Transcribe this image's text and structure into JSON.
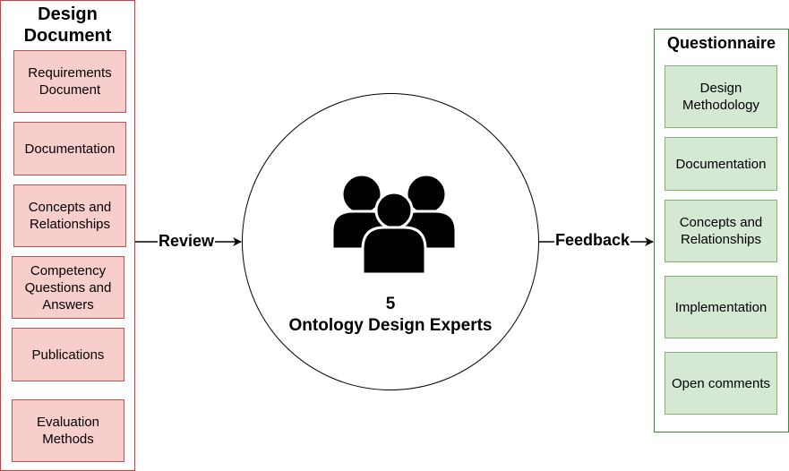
{
  "left_panel": {
    "title_line1": "Design",
    "title_line2": "Document",
    "items": [
      {
        "line1": "Requirements",
        "line2": "Document"
      },
      {
        "line1": "Documentation",
        "line2": ""
      },
      {
        "line1": "Concepts and",
        "line2": "Relationships"
      },
      {
        "line1": "Competency",
        "line2": "Questions and",
        "line3": "Answers"
      },
      {
        "line1": "Publications",
        "line2": ""
      },
      {
        "line1": "Evaluation",
        "line2": "Methods"
      }
    ]
  },
  "right_panel": {
    "title": "Questionnaire",
    "items": [
      {
        "line1": "Design",
        "line2": "Methodology"
      },
      {
        "line1": "Documentation",
        "line2": ""
      },
      {
        "line1": "Concepts and",
        "line2": "Relationships"
      },
      {
        "line1": "Implementation",
        "line2": ""
      },
      {
        "line1": "Open comments",
        "line2": ""
      }
    ]
  },
  "arrows": {
    "review_label": "Review",
    "feedback_label": "Feedback"
  },
  "center": {
    "count": "5",
    "label": "Ontology Design Experts",
    "icon": "group-of-people-icon"
  },
  "colors": {
    "left_border": "#d83a3a",
    "left_fill": "#f8cecc",
    "right_border": "#3d8a3d",
    "right_fill": "#d5e8d4"
  }
}
